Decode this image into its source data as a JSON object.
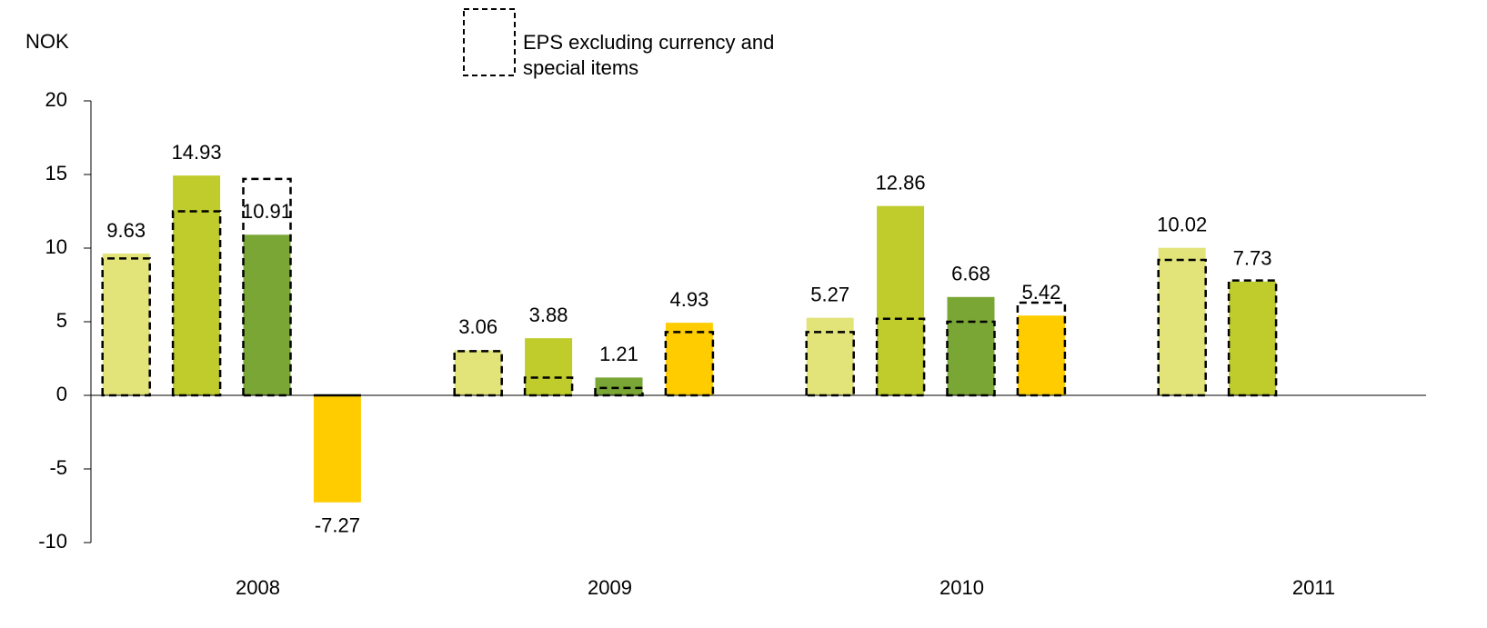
{
  "chart_data": {
    "type": "bar",
    "y_label": "NOK",
    "categories": [
      "2008",
      "2009",
      "2010",
      "2011"
    ],
    "series": [
      {
        "color": "#e2e47a",
        "values": [
          9.63,
          3.06,
          5.27,
          10.02
        ]
      },
      {
        "color": "#bfcc2c",
        "values": [
          14.93,
          3.88,
          12.86,
          7.73
        ]
      },
      {
        "color": "#7aa636",
        "values": [
          10.91,
          1.21,
          6.68,
          null
        ]
      },
      {
        "color": "#ffcc00",
        "values": [
          -7.27,
          4.93,
          5.42,
          null
        ]
      }
    ],
    "reference": {
      "name": "EPS excluding currency and special items",
      "values": [
        [
          9.3,
          3.0,
          4.3,
          9.2
        ],
        [
          12.5,
          1.2,
          5.2,
          7.8
        ],
        [
          14.7,
          0.5,
          5.0,
          null
        ],
        [
          0,
          4.3,
          6.3,
          null
        ]
      ]
    },
    "ylim": [
      -10,
      20
    ],
    "yticks": [
      -10,
      -5,
      0,
      5,
      10,
      15,
      20
    ]
  }
}
